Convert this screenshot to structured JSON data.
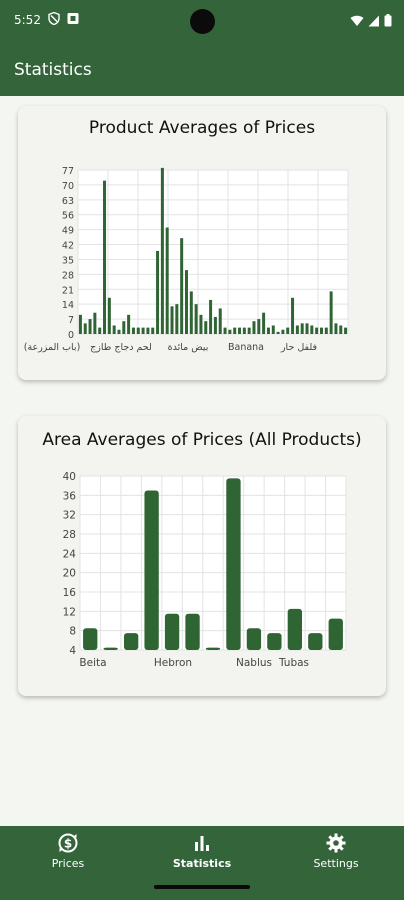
{
  "status_bar": {
    "time": "5:52"
  },
  "app_bar": {
    "title": "Statistics"
  },
  "product_chart": {
    "title": "Product Averages of Prices",
    "chart_data": {
      "type": "bar",
      "title": "Product Averages of Prices",
      "ylim": [
        0,
        77
      ],
      "yticks": [
        0,
        7,
        14,
        21,
        28,
        35,
        42,
        49,
        56,
        63,
        70,
        77
      ],
      "grid": true,
      "legend": "none",
      "series_color": "#2f6433",
      "xtick_labels": [
        "(باب المزرعة)",
        "لحم دجاج طازج",
        "بيض مائدة",
        "Banana",
        "فلفل حار"
      ],
      "values": [
        9,
        5,
        7,
        10,
        3,
        72,
        17,
        4,
        2,
        6,
        9,
        3,
        3,
        3,
        3,
        3,
        39,
        78,
        50,
        13,
        14,
        45,
        30,
        20,
        14,
        9,
        6,
        16,
        8,
        12,
        3,
        2,
        3,
        3,
        3,
        3,
        6,
        7,
        10,
        3,
        4,
        1,
        2,
        3,
        17,
        4,
        5,
        5,
        4,
        3,
        3,
        3,
        20,
        5,
        4,
        3
      ]
    }
  },
  "area_chart": {
    "title": "Area Averages of Prices (All Products)",
    "chart_data": {
      "type": "bar",
      "title": "Area Averages of Prices (All Products)",
      "ylim": [
        4,
        40
      ],
      "yticks": [
        4,
        8,
        12,
        16,
        20,
        24,
        28,
        32,
        36,
        40
      ],
      "grid": true,
      "legend": "none",
      "series_color": "#2f6433",
      "xtick_labels": [
        "Beita",
        "Hebron",
        "Nablus",
        "Tubas"
      ],
      "values": [
        8.5,
        4.5,
        7.5,
        37,
        11.5,
        11.5,
        4.5,
        39.5,
        8.5,
        7.5,
        12.5,
        7.5,
        10.5
      ]
    }
  },
  "bottom_nav": {
    "items": [
      {
        "label": "Prices",
        "icon": "price-change-icon"
      },
      {
        "label": "Statistics",
        "icon": "bar-chart-icon"
      },
      {
        "label": "Settings",
        "icon": "gear-icon"
      }
    ],
    "active": "Statistics"
  }
}
